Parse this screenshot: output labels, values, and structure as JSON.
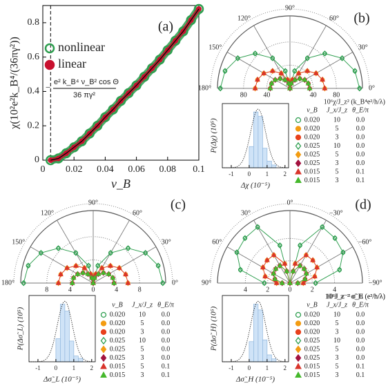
{
  "chart_data": [
    {
      "type": "line",
      "label": "(a)",
      "xlabel": "ν_B",
      "ylabel": "χ(10²e²k_B⁴/(36πγ²))",
      "x": [
        0.005,
        0.01,
        0.015,
        0.02,
        0.025,
        0.03,
        0.035,
        0.04,
        0.045,
        0.05,
        0.055,
        0.06,
        0.065,
        0.07,
        0.075,
        0.08,
        0.085,
        0.09,
        0.095,
        0.1
      ],
      "series": [
        {
          "name": "nonlinear",
          "color": "#2e9e4f",
          "marker": "circle-open",
          "values": [
            0,
            0.01,
            0.04,
            0.075,
            0.11,
            0.155,
            0.2,
            0.25,
            0.295,
            0.345,
            0.39,
            0.435,
            0.485,
            0.535,
            0.585,
            0.64,
            0.695,
            0.75,
            0.815,
            0.88
          ]
        },
        {
          "name": "linear",
          "color": "#c8102e",
          "marker": "circle",
          "values": [
            0,
            0.01,
            0.04,
            0.075,
            0.11,
            0.155,
            0.2,
            0.25,
            0.295,
            0.345,
            0.39,
            0.435,
            0.485,
            0.535,
            0.585,
            0.64,
            0.695,
            0.75,
            0.815,
            0.88
          ]
        },
        {
          "name_prefix": "−",
          "name": "e² k_B⁴ ν_B² cos Θ",
          "name_denominator": "36 πγ²",
          "color": "#000000",
          "values": [
            0,
            0.01,
            0.04,
            0.075,
            0.11,
            0.155,
            0.2,
            0.25,
            0.295,
            0.345,
            0.39,
            0.435,
            0.485,
            0.535,
            0.585,
            0.64,
            0.695,
            0.75,
            0.815,
            0.88
          ]
        }
      ],
      "vline": 0.005,
      "xlim": [
        0,
        0.1
      ],
      "xticks": [
        0,
        0.02,
        0.04,
        0.06,
        0.08,
        0.1
      ],
      "ylim": [
        0,
        0.9
      ],
      "yticks": [
        0,
        0.2,
        0.4,
        0.6,
        0.8
      ]
    },
    {
      "type": "polar",
      "label": "(b)",
      "rlabel": "10⁶χ/J_z² (k_B⁴e²/h/λ)",
      "theta_zero": "right",
      "rlim": [
        0,
        125
      ],
      "rticks": [
        40,
        80
      ],
      "theta_ticks": [
        {
          "value": 0,
          "label": "0°"
        },
        {
          "value": 30,
          "label": "30°"
        },
        {
          "value": 60,
          "label": "60°"
        },
        {
          "value": 90,
          "label": "90°"
        },
        {
          "value": 120,
          "label": "120°"
        },
        {
          "value": 150,
          "label": "150°"
        },
        {
          "value": 180,
          "label": "180°"
        }
      ],
      "theta": [
        0,
        15,
        30,
        45,
        60,
        75,
        90,
        105,
        120,
        135,
        150,
        165,
        180
      ],
      "legend_header": [
        "ν_B",
        "J_x/J_z",
        "θ_E/π"
      ],
      "series": [
        {
          "nu_b": "0.020",
          "j_ratio": "10",
          "theta_e": "0.0",
          "marker": "circle-open",
          "color": "#2e9e4f",
          "values": [
            120,
            115.9,
            103.9,
            84.9,
            60,
            31.1,
            0,
            31.1,
            60,
            84.9,
            103.9,
            115.9,
            120
          ]
        },
        {
          "nu_b": "0.020",
          "j_ratio": "5",
          "theta_e": "0.0",
          "marker": "circle",
          "color": "#f39c12",
          "values": [
            60,
            58,
            52,
            42.4,
            30,
            15.5,
            0,
            15.5,
            30,
            42.4,
            52,
            58,
            60
          ]
        },
        {
          "nu_b": "0.020",
          "j_ratio": "3",
          "theta_e": "0.0",
          "marker": "circle",
          "color": "#e8401c",
          "values": [
            34,
            32.8,
            29.4,
            24,
            17,
            8.8,
            0,
            8.8,
            17,
            24,
            29.4,
            32.8,
            34
          ]
        },
        {
          "nu_b": "0.025",
          "j_ratio": "10",
          "theta_e": "0.0",
          "marker": "diamond-open",
          "color": "#2e9e4f",
          "values": [
            120,
            115.9,
            103.9,
            84.9,
            60,
            31.1,
            0,
            31.1,
            60,
            84.9,
            103.9,
            115.9,
            120
          ]
        },
        {
          "nu_b": "0.025",
          "j_ratio": "5",
          "theta_e": "0.0",
          "marker": "diamond",
          "color": "#f39c12",
          "values": [
            60,
            58,
            52,
            42.4,
            30,
            15.5,
            0,
            15.5,
            30,
            42.4,
            52,
            58,
            60
          ]
        },
        {
          "nu_b": "0.025",
          "j_ratio": "3",
          "theta_e": "0.0",
          "marker": "diamond",
          "color": "#a3123f",
          "values": [
            34,
            32.8,
            29.4,
            24,
            17,
            8.8,
            0,
            8.8,
            17,
            24,
            29.4,
            32.8,
            34
          ]
        },
        {
          "nu_b": "0.015",
          "j_ratio": "5",
          "theta_e": "0.1",
          "marker": "triangle",
          "color": "#d9342b",
          "values": [
            60,
            58,
            52,
            42.4,
            30,
            15.5,
            0,
            15.5,
            30,
            42.4,
            52,
            58,
            60
          ]
        },
        {
          "nu_b": "0.015",
          "j_ratio": "3",
          "theta_e": "0.1",
          "marker": "triangle",
          "color": "#45b82c",
          "values": [
            34,
            32.8,
            29.4,
            24,
            17,
            8.8,
            0,
            8.8,
            17,
            24,
            29.4,
            32.8,
            34
          ]
        }
      ]
    },
    {
      "type": "histogram",
      "xlabel": "Δχ (10⁻⁵)",
      "ylabel": "P(Δχ) (10⁵)",
      "bins": [
        0,
        0.25,
        0.5,
        0.75,
        1,
        1.25,
        1.5
      ],
      "counts": [
        0.38,
        1.0,
        0.92,
        0.35,
        0.12,
        0.05
      ],
      "color": "#cfe3f7",
      "fit": {
        "mean": 0.5,
        "sd": 0.42,
        "peak": 1.05
      },
      "xlim": [
        -1.5,
        2.2
      ],
      "xticks": [
        -1,
        0,
        1,
        2
      ],
      "ylim": [
        0,
        1.15
      ]
    },
    {
      "type": "polar",
      "label": "(c)",
      "rlabel": "10⁶J_z⁻² σ̃_L (e²/h/λ)",
      "theta_zero": "right",
      "rlim": [
        0,
        12.5
      ],
      "rticks": [
        0,
        4,
        8
      ],
      "theta_ticks": [
        {
          "value": 0,
          "label": "0°"
        },
        {
          "value": 30,
          "label": "30°"
        },
        {
          "value": 60,
          "label": "60°"
        },
        {
          "value": 90,
          "label": "90°"
        },
        {
          "value": 120,
          "label": "120°"
        },
        {
          "value": 150,
          "label": "150°"
        },
        {
          "value": 180,
          "label": "180°"
        }
      ],
      "theta": [
        0,
        15,
        30,
        45,
        60,
        75,
        90,
        105,
        120,
        135,
        150,
        165,
        180
      ],
      "legend_header": [
        "ν_B",
        "J_x/J_z",
        "θ_E/π"
      ],
      "series": [
        {
          "nu_b": "0.020",
          "j_ratio": "10",
          "theta_e": "0.0",
          "marker": "circle-open",
          "color": "#2e9e4f",
          "values": [
            12,
            11.6,
            10.4,
            8.5,
            6,
            3.1,
            0,
            3.1,
            6,
            8.5,
            10.4,
            11.6,
            12
          ]
        },
        {
          "nu_b": "0.020",
          "j_ratio": "5",
          "theta_e": "0.0",
          "marker": "circle",
          "color": "#f39c12",
          "values": [
            6,
            5.8,
            5.2,
            4.2,
            3,
            1.6,
            0,
            1.6,
            3,
            4.2,
            5.2,
            5.8,
            6
          ]
        },
        {
          "nu_b": "0.020",
          "j_ratio": "3",
          "theta_e": "0.0",
          "marker": "circle",
          "color": "#e8401c",
          "values": [
            3.6,
            3.5,
            3.1,
            2.5,
            1.8,
            0.9,
            0,
            0.9,
            1.8,
            2.5,
            3.1,
            3.5,
            3.6
          ]
        },
        {
          "nu_b": "0.025",
          "j_ratio": "10",
          "theta_e": "0.0",
          "marker": "diamond-open",
          "color": "#2e9e4f",
          "values": [
            12,
            11.6,
            10.4,
            8.5,
            6,
            3.1,
            0,
            3.1,
            6,
            8.5,
            10.4,
            11.6,
            12
          ]
        },
        {
          "nu_b": "0.025",
          "j_ratio": "5",
          "theta_e": "0.0",
          "marker": "diamond",
          "color": "#f39c12",
          "values": [
            6,
            5.8,
            5.2,
            4.2,
            3,
            1.6,
            0,
            1.6,
            3,
            4.2,
            5.2,
            5.8,
            6
          ]
        },
        {
          "nu_b": "0.025",
          "j_ratio": "3",
          "theta_e": "0.0",
          "marker": "diamond",
          "color": "#a3123f",
          "values": [
            3.6,
            3.5,
            3.1,
            2.5,
            1.8,
            0.9,
            0,
            0.9,
            1.8,
            2.5,
            3.1,
            3.5,
            3.6
          ]
        },
        {
          "nu_b": "0.015",
          "j_ratio": "5",
          "theta_e": "0.1",
          "marker": "triangle",
          "color": "#d9342b",
          "values": [
            6,
            5.8,
            5.2,
            4.2,
            3,
            1.6,
            0,
            1.6,
            3,
            4.2,
            5.2,
            5.8,
            6
          ]
        },
        {
          "nu_b": "0.015",
          "j_ratio": "3",
          "theta_e": "0.1",
          "marker": "triangle",
          "color": "#45b82c",
          "values": [
            3.6,
            3.5,
            3.1,
            2.5,
            1.8,
            0.9,
            0,
            0.9,
            1.8,
            2.5,
            3.1,
            3.5,
            3.6
          ]
        }
      ]
    },
    {
      "type": "histogram",
      "xlabel": "Δσ̃_L (10⁻⁵)",
      "ylabel": "P(Δσ̃_L) (10⁵)",
      "bins": [
        0,
        0.25,
        0.5,
        0.75,
        1,
        1.25,
        1.5
      ],
      "counts": [
        0.4,
        1.0,
        0.88,
        0.36,
        0.1,
        0.06
      ],
      "color": "#cfe3f7",
      "fit": {
        "mean": 0.5,
        "sd": 0.42,
        "peak": 1.05
      },
      "xlim": [
        -1.5,
        2.2
      ],
      "xticks": [
        -1,
        0,
        1,
        2
      ],
      "ylim": [
        0,
        1.15
      ]
    },
    {
      "type": "polar",
      "label": "(d)",
      "rlabel": "10⁶J_z⁻² σ̃_H (e²/h/λ)",
      "theta_zero": "top",
      "rlim": [
        0,
        6.5
      ],
      "rticks": [
        0,
        2,
        4
      ],
      "theta_ticks": [
        {
          "value": -90,
          "label": "−90°"
        },
        {
          "value": -60,
          "label": "−60°"
        },
        {
          "value": -30,
          "label": "−30°"
        },
        {
          "value": 0,
          "label": "0°"
        },
        {
          "value": 30,
          "label": "30°"
        },
        {
          "value": 60,
          "label": "60°"
        },
        {
          "value": 90,
          "label": "90°"
        }
      ],
      "theta": [
        -90,
        -75,
        -60,
        -45,
        -30,
        -15,
        0,
        15,
        30,
        45,
        60,
        75,
        90
      ],
      "legend_header": [
        "ν_B",
        "J_x/J_z",
        "θ_E/π"
      ],
      "series": [
        {
          "nu_b": "0.020",
          "j_ratio": "10",
          "theta_e": "0.0",
          "marker": "circle-open",
          "color": "#2e9e4f",
          "values": [
            2.3,
            4.6,
            5.5,
            5.7,
            5.8,
            3.5,
            0,
            3.5,
            5.8,
            5.7,
            5.5,
            4.6,
            2.3
          ]
        },
        {
          "nu_b": "0.020",
          "j_ratio": "5",
          "theta_e": "0.0",
          "marker": "circle",
          "color": "#f39c12",
          "values": [
            1.2,
            2.3,
            2.8,
            2.9,
            2.9,
            1.8,
            0,
            1.8,
            2.9,
            2.9,
            2.8,
            2.3,
            1.2
          ]
        },
        {
          "nu_b": "0.020",
          "j_ratio": "3",
          "theta_e": "0.0",
          "marker": "circle",
          "color": "#e8401c",
          "values": [
            0.7,
            1.4,
            1.7,
            1.8,
            1.8,
            1.1,
            0,
            1.1,
            1.8,
            1.8,
            1.7,
            1.4,
            0.7
          ]
        },
        {
          "nu_b": "0.025",
          "j_ratio": "10",
          "theta_e": "0.0",
          "marker": "diamond-open",
          "color": "#2e9e4f",
          "values": [
            2.3,
            4.6,
            5.5,
            5.7,
            5.8,
            3.5,
            0,
            3.5,
            5.8,
            5.7,
            5.5,
            4.6,
            2.3
          ]
        },
        {
          "nu_b": "0.025",
          "j_ratio": "5",
          "theta_e": "0.0",
          "marker": "diamond",
          "color": "#f39c12",
          "values": [
            1.2,
            2.3,
            2.8,
            2.9,
            2.9,
            1.8,
            0,
            1.8,
            2.9,
            2.9,
            2.8,
            2.3,
            1.2
          ]
        },
        {
          "nu_b": "0.025",
          "j_ratio": "3",
          "theta_e": "0.0",
          "marker": "diamond",
          "color": "#a3123f",
          "values": [
            0.7,
            1.4,
            1.7,
            1.8,
            1.8,
            1.1,
            0,
            1.1,
            1.8,
            1.8,
            1.7,
            1.4,
            0.7
          ]
        },
        {
          "nu_b": "0.015",
          "j_ratio": "5",
          "theta_e": "0.1",
          "marker": "triangle",
          "color": "#d9342b",
          "values": [
            1.2,
            2.3,
            2.8,
            2.9,
            2.9,
            1.8,
            0,
            1.8,
            2.9,
            2.9,
            2.8,
            2.3,
            1.2
          ]
        },
        {
          "nu_b": "0.015",
          "j_ratio": "3",
          "theta_e": "0.1",
          "marker": "triangle",
          "color": "#45b82c",
          "values": [
            0.7,
            1.4,
            1.7,
            1.8,
            1.8,
            1.1,
            0,
            1.1,
            1.8,
            1.8,
            1.7,
            1.4,
            0.7
          ]
        }
      ]
    },
    {
      "type": "histogram",
      "xlabel": "Δσ̃_H (10⁻⁵)",
      "ylabel": "P(Δσ̃_H) (10⁵)",
      "bins": [
        0,
        0.25,
        0.5,
        0.75,
        1,
        1.25,
        1.5
      ],
      "counts": [
        0.35,
        1.0,
        0.9,
        0.38,
        0.12,
        0.05
      ],
      "color": "#cfe3f7",
      "fit": {
        "mean": 0.5,
        "sd": 0.42,
        "peak": 1.05
      },
      "xlim": [
        -1.5,
        2.2
      ],
      "xticks": [
        -1,
        0,
        1,
        2
      ],
      "ylim": [
        0,
        1.15
      ]
    }
  ]
}
